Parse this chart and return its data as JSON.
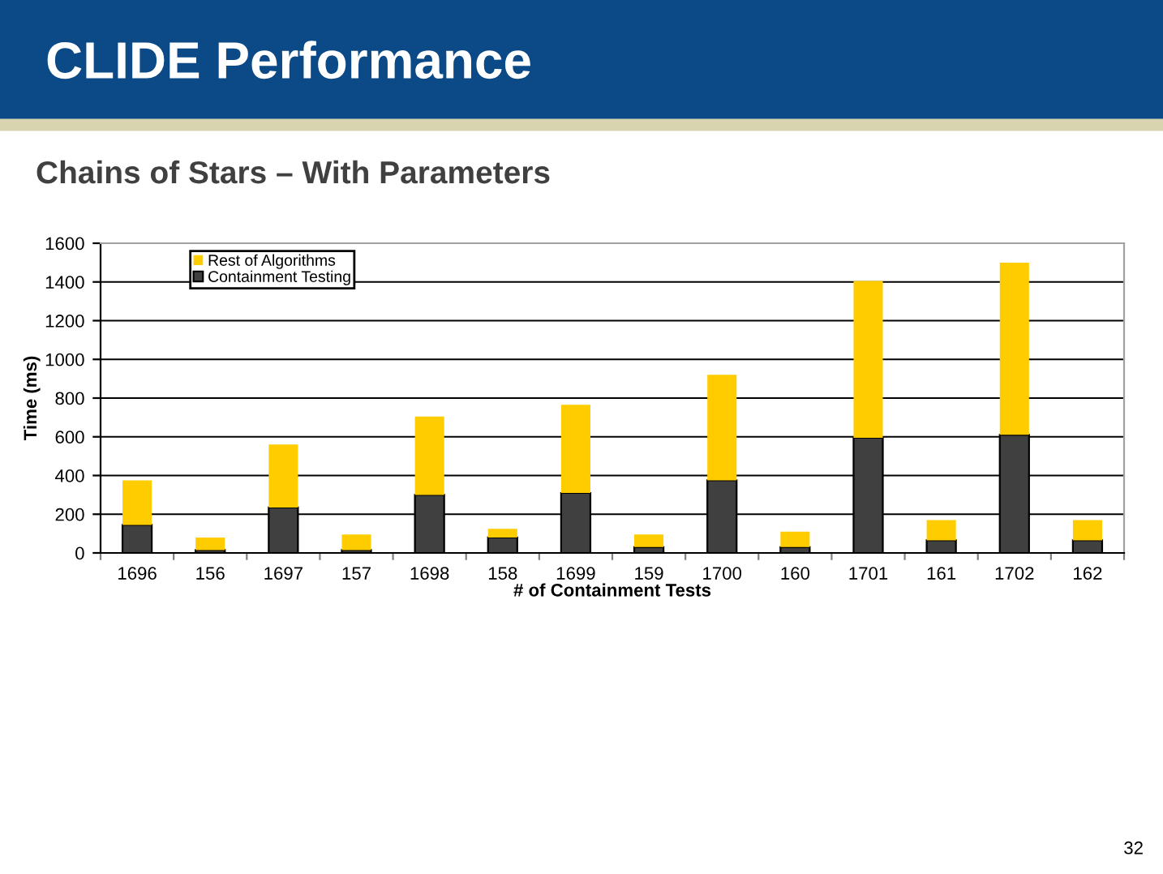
{
  "chart_data": {
    "type": "bar",
    "title": "CLIDE Performance",
    "subtitle": "Chains of Stars – With Parameters",
    "xlabel": "# of Containment Tests",
    "ylabel": "Time (ms)",
    "categories": [
      "1696",
      "156",
      "1697",
      "157",
      "1698",
      "158",
      "1699",
      "159",
      "1700",
      "160",
      "1701",
      "161",
      "1702",
      "162"
    ],
    "stacked": true,
    "series": [
      {
        "name": "Containment Testing",
        "color": "#404040",
        "values": [
          145,
          15,
          235,
          15,
          300,
          80,
          310,
          30,
          375,
          30,
          595,
          65,
          610,
          65
        ]
      },
      {
        "name": "Rest of Algorithms",
        "color": "#ffcc00",
        "values": [
          230,
          65,
          325,
          80,
          405,
          45,
          455,
          65,
          545,
          80,
          810,
          105,
          890,
          105
        ]
      }
    ],
    "ylim": [
      0,
      1600
    ],
    "yticks": [
      0,
      200,
      400,
      600,
      800,
      1000,
      1200,
      1400,
      1600
    ],
    "grid": "y",
    "legend": "top left",
    "annotations": [
      "32"
    ]
  }
}
